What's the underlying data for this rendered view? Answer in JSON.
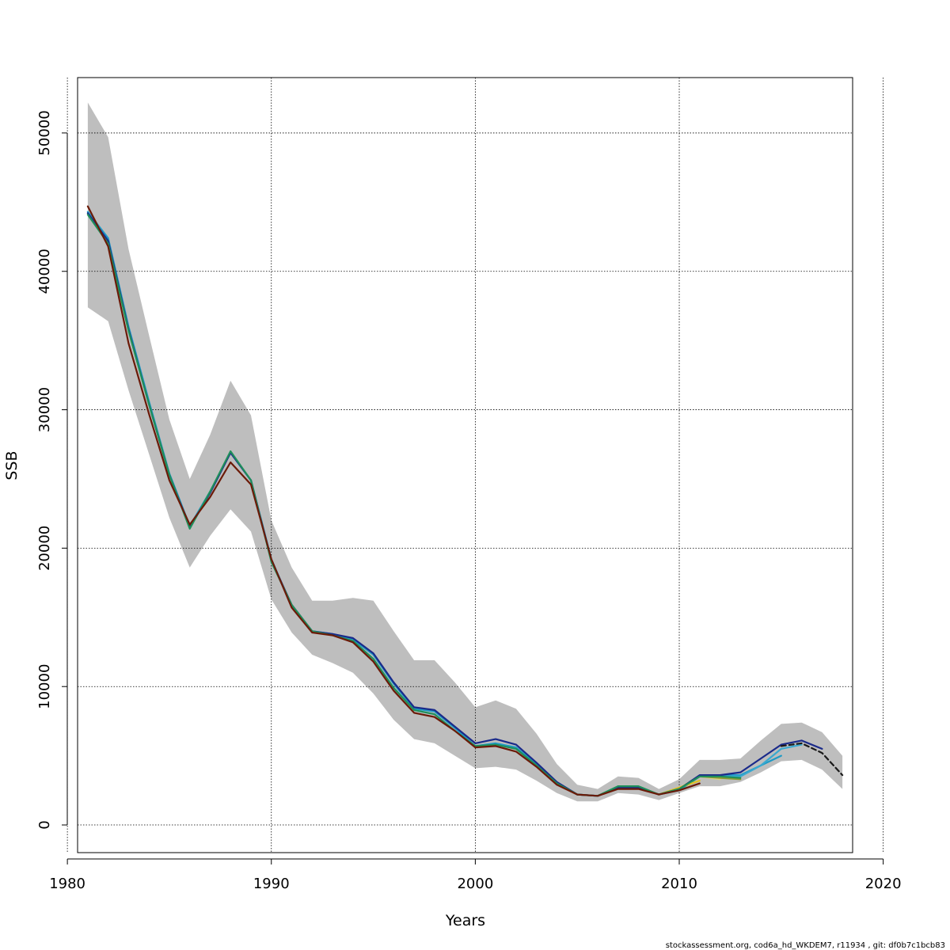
{
  "chart_data": {
    "type": "line",
    "title": "",
    "xlabel": "Years",
    "ylabel": "SSB",
    "xlim": [
      1980.5,
      2018.5
    ],
    "ylim": [
      -2000,
      54000
    ],
    "x_ticks": [
      1980,
      1990,
      2000,
      2010,
      2020
    ],
    "y_ticks": [
      0,
      10000,
      20000,
      30000,
      40000,
      50000
    ],
    "grid": true,
    "legend": "none",
    "band_color": "#bebebe",
    "confidence_band": {
      "years": [
        1981,
        1982,
        1983,
        1984,
        1985,
        1986,
        1987,
        1988,
        1989,
        1990,
        1991,
        1992,
        1993,
        1994,
        1995,
        1996,
        1997,
        1998,
        1999,
        2000,
        2001,
        2002,
        2003,
        2004,
        2005,
        2006,
        2007,
        2008,
        2009,
        2010,
        2011,
        2012,
        2013,
        2014,
        2015,
        2016,
        2017,
        2018
      ],
      "upper": [
        52200,
        49700,
        41600,
        35400,
        29300,
        25000,
        28200,
        32100,
        29600,
        22000,
        18600,
        16200,
        16200,
        16400,
        16200,
        14000,
        11900,
        11900,
        10300,
        8500,
        9000,
        8400,
        6600,
        4400,
        2900,
        2600,
        3500,
        3400,
        2600,
        3300,
        4700,
        4700,
        4800,
        6100,
        7300,
        7400,
        6700,
        5000
      ],
      "lower": [
        37400,
        36400,
        31400,
        26800,
        22200,
        18600,
        20900,
        22800,
        21200,
        16300,
        13900,
        12300,
        11700,
        11000,
        9500,
        7600,
        6200,
        5900,
        5000,
        4100,
        4200,
        4000,
        3200,
        2300,
        1700,
        1700,
        2300,
        2200,
        1800,
        2300,
        2800,
        2800,
        3100,
        3800,
        4600,
        4700,
        4000,
        2600
      ]
    },
    "series": [
      {
        "color": "#1f9bc6",
        "dashed": false,
        "years": [
          1981,
          1982,
          1983,
          1984,
          1985,
          1986,
          1987,
          1988,
          1989,
          1990,
          1991,
          1992,
          1993,
          1994,
          1995,
          1996,
          1997,
          1998,
          1999,
          2000,
          2001,
          2002,
          2003,
          2004,
          2005,
          2006,
          2007,
          2008,
          2009,
          2010,
          2011,
          2012,
          2013,
          2014,
          2015
        ],
        "values": [
          44300,
          42400,
          36000,
          30600,
          25400,
          21600,
          24100,
          26900,
          24900,
          19200,
          15800,
          14000,
          13800,
          13400,
          12300,
          10200,
          8400,
          8200,
          7000,
          5700,
          5900,
          5600,
          4400,
          3000,
          2200,
          2100,
          2700,
          2700,
          2200,
          2500,
          3500,
          3600,
          3600,
          4300,
          5000
        ]
      },
      {
        "color": "#3aa9d0",
        "dashed": false,
        "years": [
          2009,
          2010,
          2011,
          2012,
          2013,
          2014,
          2015,
          2016
        ],
        "values": [
          2200,
          2600,
          3500,
          3500,
          3500,
          4300,
          5500,
          5800
        ]
      },
      {
        "color": "#d8d48a",
        "dashed": false,
        "years": [
          2009,
          2010,
          2011,
          2012
        ],
        "values": [
          2200,
          2700,
          3500,
          3300
        ]
      },
      {
        "color": "#e0c020",
        "dashed": false,
        "years": [
          2009,
          2010,
          2011
        ],
        "values": [
          2200,
          2700,
          3200
        ]
      },
      {
        "color": "#8b9a2f",
        "dashed": false,
        "years": [
          2009,
          2010,
          2011,
          2012,
          2013
        ],
        "values": [
          2200,
          2600,
          3500,
          3400,
          3300
        ]
      },
      {
        "color": "#1a2a8a",
        "dashed": false,
        "years": [
          1981,
          1982,
          1983,
          1984,
          1985,
          1986,
          1987,
          1988,
          1989,
          1990,
          1991,
          1992,
          1993,
          1994,
          1995,
          1996,
          1997,
          1998,
          1999,
          2000,
          2001,
          2002,
          2003,
          2004,
          2005,
          2006,
          2007,
          2008,
          2009,
          2010,
          2011,
          2012,
          2013,
          2014,
          2015,
          2016,
          2017
        ],
        "values": [
          44200,
          42200,
          35800,
          30400,
          25300,
          21500,
          24000,
          26900,
          24900,
          19100,
          15900,
          14000,
          13800,
          13500,
          12400,
          10300,
          8500,
          8300,
          7100,
          5900,
          6200,
          5800,
          4500,
          3100,
          2200,
          2100,
          2700,
          2700,
          2200,
          2600,
          3600,
          3600,
          3800,
          4800,
          5800,
          6100,
          5500
        ]
      },
      {
        "color": "#1e8f5a",
        "dashed": false,
        "years": [
          1981,
          1982,
          1983,
          1984,
          1985,
          1986,
          1987,
          1988,
          1989,
          1990,
          1991,
          1992,
          1993,
          1994,
          1995,
          1996,
          1997,
          1998,
          1999,
          2000,
          2001,
          2002,
          2003,
          2004,
          2005,
          2006,
          2007,
          2008,
          2009,
          2010,
          2011,
          2012,
          2013
        ],
        "values": [
          44100,
          42000,
          35700,
          30400,
          25300,
          21400,
          24100,
          27000,
          24900,
          19000,
          15900,
          14000,
          13700,
          13300,
          12000,
          9900,
          8300,
          8000,
          6800,
          5700,
          5800,
          5500,
          4300,
          3000,
          2200,
          2100,
          2800,
          2800,
          2200,
          2600,
          3500,
          3500,
          3400
        ]
      },
      {
        "color": "#1a1a1a",
        "dashed": true,
        "years": [
          2015,
          2016,
          2017,
          2018
        ],
        "values": [
          5700,
          5900,
          5200,
          3600
        ]
      },
      {
        "color": "#6b1a08",
        "dashed": false,
        "years": [
          1981,
          1982,
          1983,
          1984,
          1985,
          1986,
          1987,
          1988,
          1989,
          1990,
          1991,
          1992,
          1993,
          1994,
          1995,
          1996,
          1997,
          1998,
          1999,
          2000,
          2001,
          2002,
          2003,
          2004,
          2005,
          2006,
          2007,
          2008,
          2009,
          2010,
          2011
        ],
        "values": [
          44700,
          41800,
          34800,
          29700,
          24900,
          21700,
          23700,
          26200,
          24600,
          19200,
          15700,
          13900,
          13700,
          13200,
          11800,
          9700,
          8100,
          7800,
          6800,
          5600,
          5700,
          5300,
          4200,
          2900,
          2200,
          2100,
          2600,
          2600,
          2200,
          2500,
          3000
        ]
      }
    ]
  },
  "footer": {
    "credit": "stockassessment.org, cod6a_hd_WKDEM7, r11934 , git: df0b7c1bcb83"
  }
}
